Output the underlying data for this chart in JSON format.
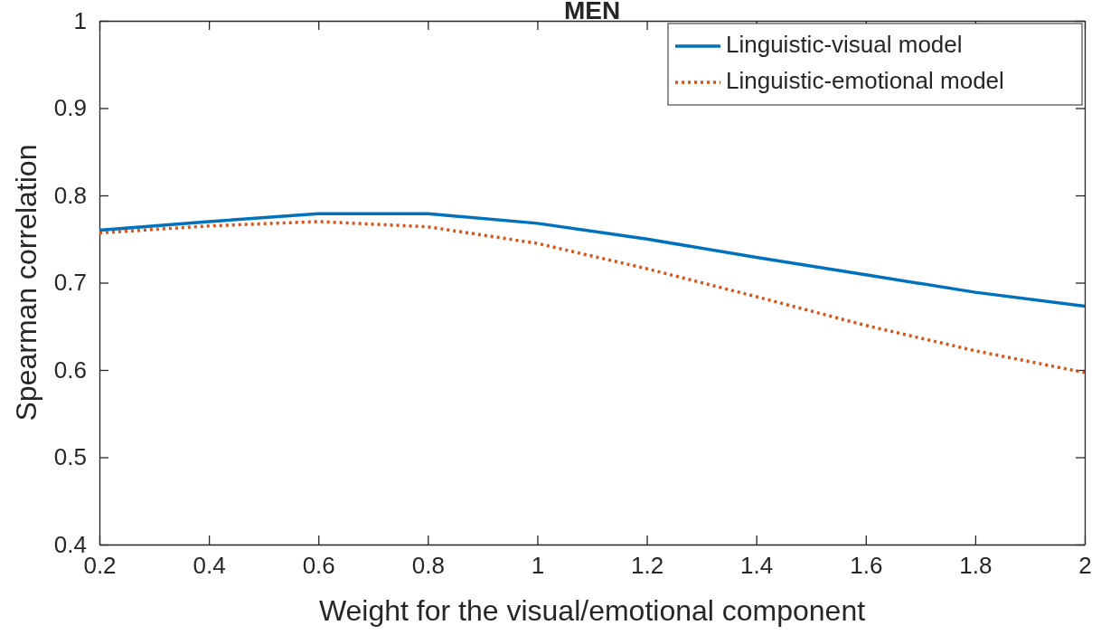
{
  "chart_data": {
    "type": "line",
    "title": "MEN",
    "xlabel": "Weight for the visual/emotional component",
    "ylabel": "Spearman correlation",
    "x": [
      0.2,
      0.4,
      0.6,
      0.8,
      1,
      1.2,
      1.4,
      1.6,
      1.8,
      2
    ],
    "series": [
      {
        "name": "Linguistic-visual model",
        "color": "#0072bd",
        "line_style": "solid",
        "values": [
          0.76,
          0.77,
          0.779,
          0.779,
          0.768,
          0.75,
          0.729,
          0.709,
          0.689,
          0.673
        ]
      },
      {
        "name": "Linguistic-emotional model",
        "color": "#d95319",
        "line_style": "dotted",
        "values": [
          0.757,
          0.765,
          0.77,
          0.764,
          0.745,
          0.716,
          0.684,
          0.651,
          0.622,
          0.597
        ]
      }
    ],
    "xlim": [
      0.2,
      2
    ],
    "xticks": [
      0.2,
      0.4,
      0.6,
      0.8,
      1,
      1.2,
      1.4,
      1.6,
      1.8,
      2
    ],
    "ylim": [
      0.4,
      1
    ],
    "yticks": [
      0.4,
      0.5,
      0.6,
      0.7,
      0.8,
      0.9,
      1
    ],
    "grid": false,
    "legend": "top right",
    "marker": "none"
  }
}
